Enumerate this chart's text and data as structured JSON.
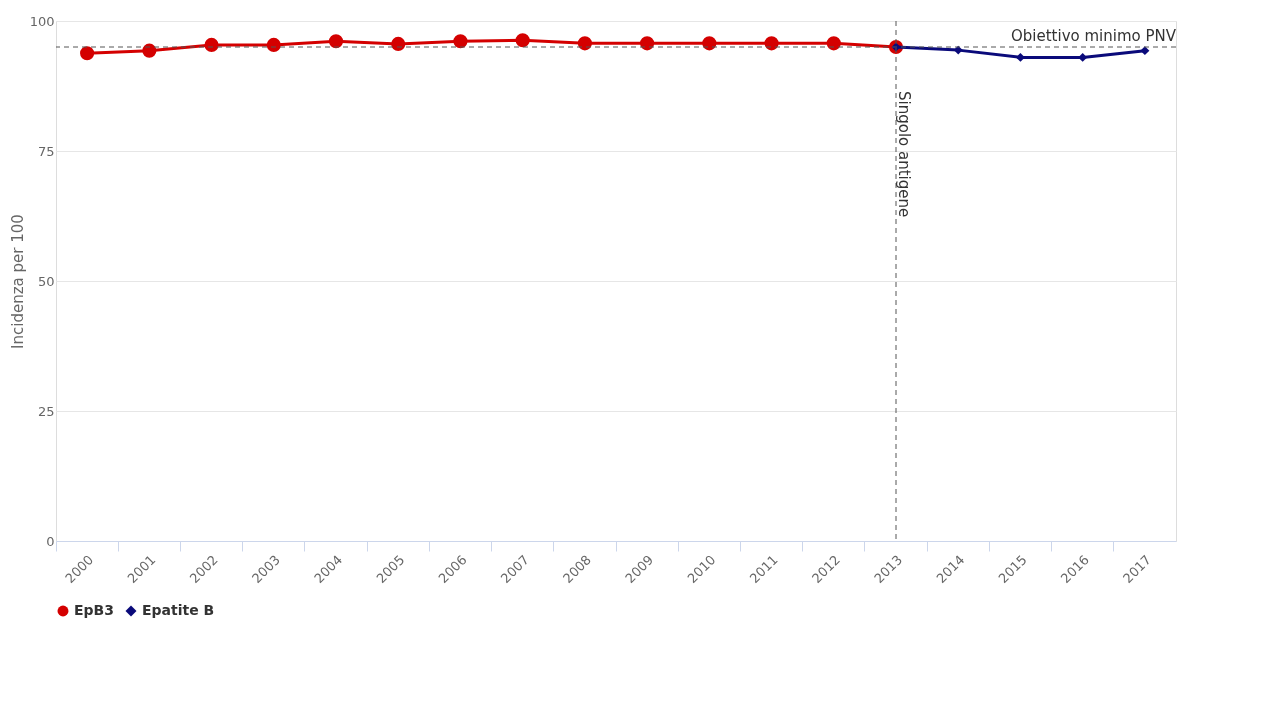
{
  "chart_data": {
    "type": "line",
    "categories": [
      "2000",
      "2001",
      "2002",
      "2003",
      "2004",
      "2005",
      "2006",
      "2007",
      "2008",
      "2009",
      "2010",
      "2011",
      "2012",
      "2013",
      "2014",
      "2015",
      "2016",
      "2017"
    ],
    "series": [
      {
        "name": "EpB3",
        "color": "#d40000",
        "marker": "circle",
        "values": [
          93.8,
          94.3,
          95.4,
          95.4,
          96.1,
          95.6,
          96.1,
          96.3,
          95.7,
          95.7,
          95.7,
          95.7,
          95.7,
          95.0,
          null,
          null,
          null,
          null
        ]
      },
      {
        "name": "Epatite B",
        "color": "#0a0a7a",
        "marker": "diamond",
        "values": [
          null,
          null,
          null,
          null,
          null,
          null,
          null,
          null,
          null,
          null,
          null,
          null,
          null,
          95.0,
          94.4,
          93.0,
          93.0,
          94.3
        ]
      }
    ],
    "ylabel": "Incidenza per 100",
    "ylim": [
      0,
      100
    ],
    "yticks": [
      0,
      25,
      50,
      75,
      100
    ],
    "grid": "y",
    "legend": "bottom",
    "ref_lines": [
      {
        "axis": "y",
        "value": 95,
        "label": "Obiettivo minimo PNV",
        "line_style": "dashed",
        "color": "#555555"
      },
      {
        "axis": "x",
        "value": "2013",
        "label": "Singolo antigene",
        "line_style": "dashed",
        "color": "#555555"
      }
    ]
  }
}
